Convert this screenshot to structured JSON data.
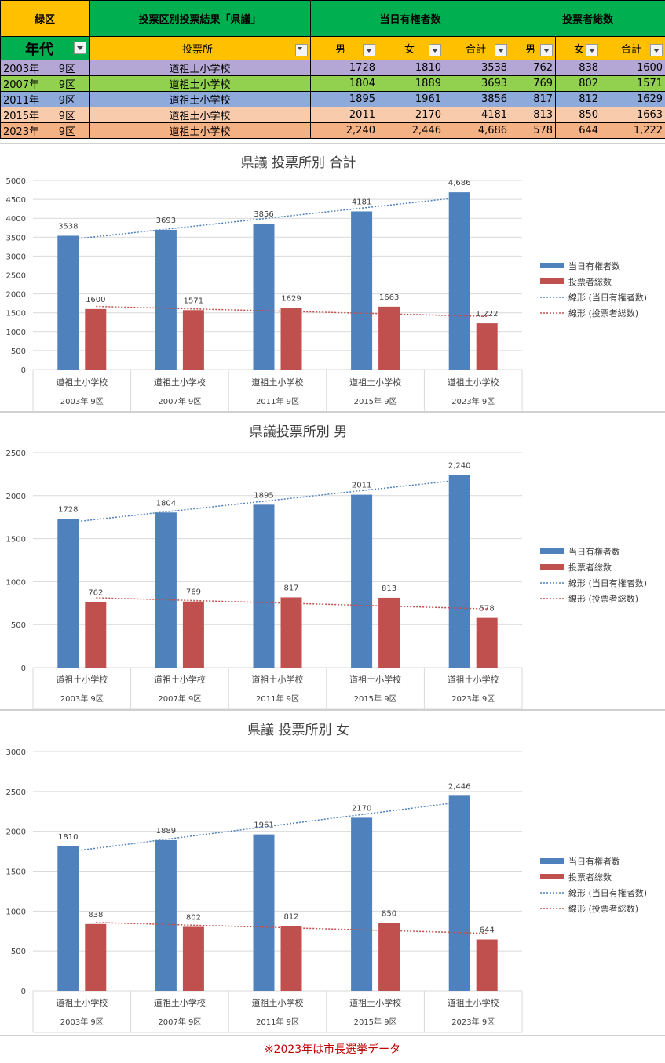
{
  "header": {
    "district": "緑区",
    "title": "投票区別投票結果「県議」",
    "eligible_group": "当日有権者数",
    "voters_group": "投票者総数",
    "year_col": "年代",
    "station_col": "投票所",
    "male": "男",
    "female": "女",
    "total": "合計"
  },
  "rows": [
    {
      "year": "2003年",
      "ward": "9区",
      "station": "道祖土小学校",
      "e_m": "1728",
      "e_f": "1810",
      "e_t": "3538",
      "v_m": "762",
      "v_f": "838",
      "v_t": "1600",
      "color": "#b4a7d6"
    },
    {
      "year": "2007年",
      "ward": "9区",
      "station": "道祖土小学校",
      "e_m": "1804",
      "e_f": "1889",
      "e_t": "3693",
      "v_m": "769",
      "v_f": "802",
      "v_t": "1571",
      "color": "#92d050"
    },
    {
      "year": "2011年",
      "ward": "9区",
      "station": "道祖土小学校",
      "e_m": "1895",
      "e_f": "1961",
      "e_t": "3856",
      "v_m": "817",
      "v_f": "812",
      "v_t": "1629",
      "color": "#8eaadb"
    },
    {
      "year": "2015年",
      "ward": "9区",
      "station": "道祖土小学校",
      "e_m": "2011",
      "e_f": "2170",
      "e_t": "4181",
      "v_m": "813",
      "v_f": "850",
      "v_t": "1663",
      "color": "#f8cbad"
    },
    {
      "year": "2023年",
      "ward": "9区",
      "station": "道祖土小学校",
      "e_m": "2,240",
      "e_f": "2,446",
      "e_t": "4,686",
      "v_m": "578",
      "v_f": "644",
      "v_t": "1,222",
      "color": "#f4b183"
    }
  ],
  "colors": {
    "district_bg": "#ffc000",
    "header_green": "#00b050",
    "eligible_bar": "#4f81bd",
    "voters_bar": "#c0504d"
  },
  "legend": {
    "eligible": "当日有権者数",
    "voters": "投票者総数",
    "trend_eligible": "線形 (当日有権者数)",
    "trend_voters": "線形 (投票者総数)"
  },
  "chart_data": [
    {
      "type": "bar",
      "title": "県議  投票所別  合計",
      "categories": [
        "道祖土小学校",
        "道祖土小学校",
        "道祖土小学校",
        "道祖土小学校",
        "道祖土小学校"
      ],
      "category_groups": [
        "2003年      9区",
        "2007年      9区",
        "2011年      9区",
        "2015年      9区",
        "2023年      9区"
      ],
      "series": [
        {
          "name": "当日有権者数",
          "values": [
            3538,
            3693,
            3856,
            4181,
            4686
          ],
          "labels": [
            "3538",
            "3693",
            "3856",
            "4181",
            "4,686"
          ],
          "color": "#4f81bd"
        },
        {
          "name": "投票者総数",
          "values": [
            1600,
            1571,
            1629,
            1663,
            1222
          ],
          "labels": [
            "1600",
            "1571",
            "1629",
            "1663",
            "1,222"
          ],
          "color": "#c0504d"
        }
      ],
      "trendlines": [
        "線形 (当日有権者数)",
        "線形 (投票者総数)"
      ],
      "ylim": [
        0,
        5000
      ],
      "yticks": [
        0,
        500,
        1000,
        1500,
        2000,
        2500,
        3000,
        3500,
        4000,
        4500,
        5000
      ],
      "legend": "right",
      "grid": true
    },
    {
      "type": "bar",
      "title": "県議投票所別  男",
      "categories": [
        "道祖土小学校",
        "道祖土小学校",
        "道祖土小学校",
        "道祖土小学校",
        "道祖土小学校"
      ],
      "category_groups": [
        "2003年      9区",
        "2007年      9区",
        "2011年      9区",
        "2015年      9区",
        "2023年      9区"
      ],
      "series": [
        {
          "name": "当日有権者数",
          "values": [
            1728,
            1804,
            1895,
            2011,
            2240
          ],
          "labels": [
            "1728",
            "1804",
            "1895",
            "2011",
            "2,240"
          ],
          "color": "#4f81bd"
        },
        {
          "name": "投票者総数",
          "values": [
            762,
            769,
            817,
            813,
            578
          ],
          "labels": [
            "762",
            "769",
            "817",
            "813",
            "578"
          ],
          "color": "#c0504d"
        }
      ],
      "trendlines": [
        "線形 (当日有権者数)",
        "線形 (投票者総数)"
      ],
      "ylim": [
        0,
        2500
      ],
      "yticks": [
        0,
        500,
        1000,
        1500,
        2000,
        2500
      ],
      "legend": "right",
      "grid": true
    },
    {
      "type": "bar",
      "title": "県議  投票所別  女",
      "categories": [
        "道祖土小学校",
        "道祖土小学校",
        "道祖土小学校",
        "道祖土小学校",
        "道祖土小学校"
      ],
      "category_groups": [
        "2003年      9区",
        "2007年      9区",
        "2011年      9区",
        "2015年      9区",
        "2023年      9区"
      ],
      "series": [
        {
          "name": "当日有権者数",
          "values": [
            1810,
            1889,
            1961,
            2170,
            2446
          ],
          "labels": [
            "1810",
            "1889",
            "1961",
            "2170",
            "2,446"
          ],
          "color": "#4f81bd"
        },
        {
          "name": "投票者総数",
          "values": [
            838,
            802,
            812,
            850,
            644
          ],
          "labels": [
            "838",
            "802",
            "812",
            "850",
            "644"
          ],
          "color": "#c0504d"
        }
      ],
      "trendlines": [
        "線形 (当日有権者数)",
        "線形 (投票者総数)"
      ],
      "ylim": [
        0,
        3000
      ],
      "yticks": [
        0,
        500,
        1000,
        1500,
        2000,
        2500,
        3000
      ],
      "legend": "right",
      "grid": true
    }
  ],
  "footnote": "※2023年は市長選挙データ"
}
